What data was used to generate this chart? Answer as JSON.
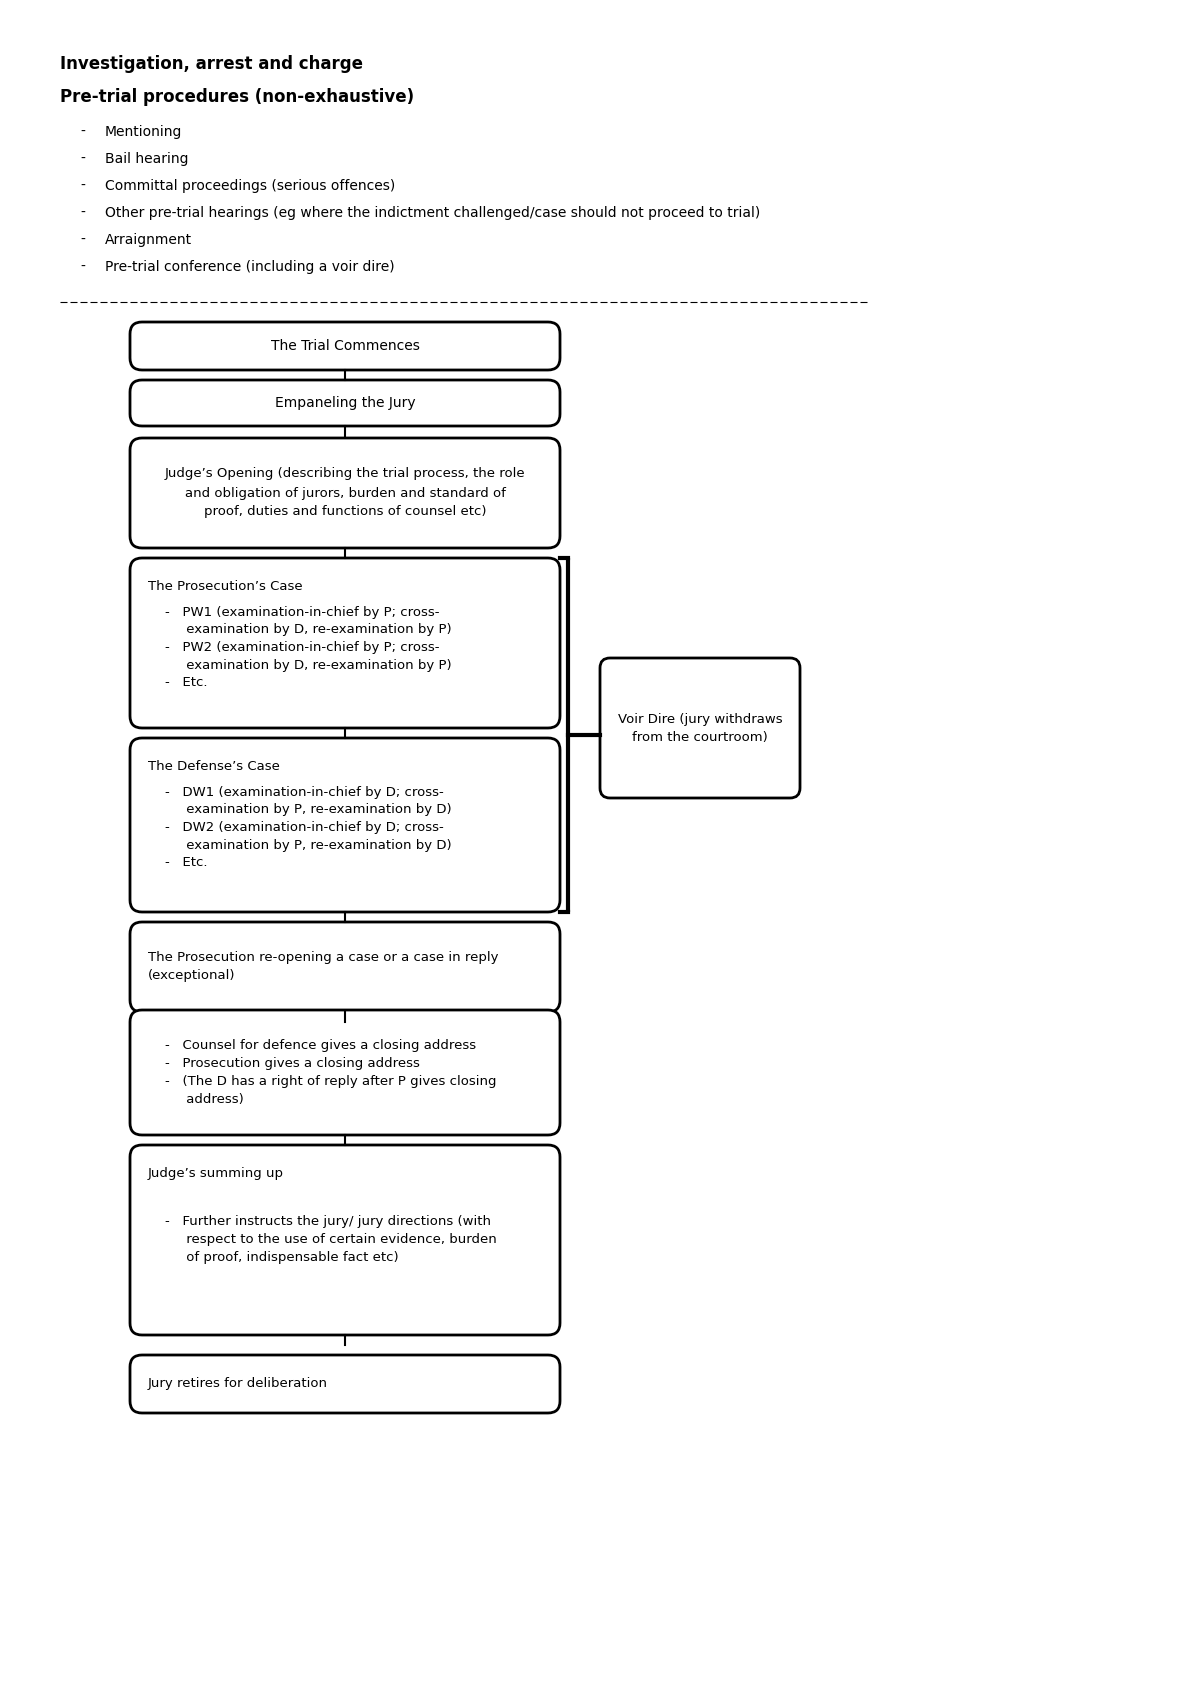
{
  "title1": "Investigation, arrest and charge",
  "title2": "Pre-trial procedures (non-exhaustive)",
  "bullets": [
    "Mentioning",
    "Bail hearing",
    "Committal proceedings (serious offences)",
    "Other pre-trial hearings (eg where the indictment challenged/case should not proceed to trial)",
    "Arraignment",
    "Pre-trial conference (including a voir dire)"
  ],
  "bg_color": "#ffffff",
  "box_edge_color": "#000000",
  "text_color": "#000000",
  "font_family": "DejaVu Sans"
}
